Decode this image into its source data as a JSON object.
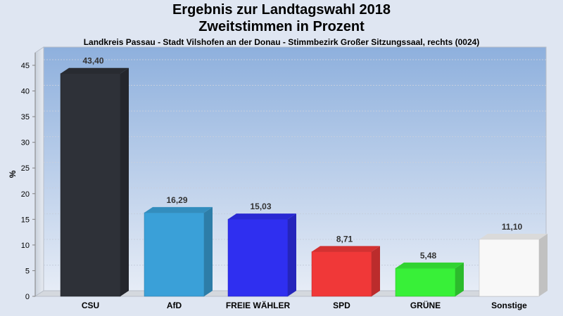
{
  "chart_data": {
    "type": "bar",
    "title": "Ergebnis zur Landtagswahl 2018",
    "title2": "Zweitstimmen in Prozent",
    "subtitle": "Landkreis Passau - Stadt Vilshofen an der Donau - Stimmbezirk Großer Sitzungssaal, rechts (0024)",
    "ylabel": "%",
    "xlabel": "",
    "ylim": [
      0,
      45
    ],
    "yticks": [
      0,
      5,
      10,
      15,
      20,
      25,
      30,
      35,
      40,
      45
    ],
    "categories": [
      "CSU",
      "AfD",
      "FREIE WÄHLER",
      "SPD",
      "GRÜNE",
      "Sonstige"
    ],
    "values": [
      43.4,
      16.29,
      15.03,
      8.71,
      5.48,
      11.1
    ],
    "value_labels": [
      "43,40",
      "16,29",
      "15,03",
      "8,71",
      "5,48",
      "11,10"
    ],
    "colors": [
      "#2e3138",
      "#3aa0d8",
      "#2f2ff0",
      "#f03838",
      "#38f038",
      "#f8f8f8"
    ],
    "grid": true,
    "legend": "none"
  }
}
